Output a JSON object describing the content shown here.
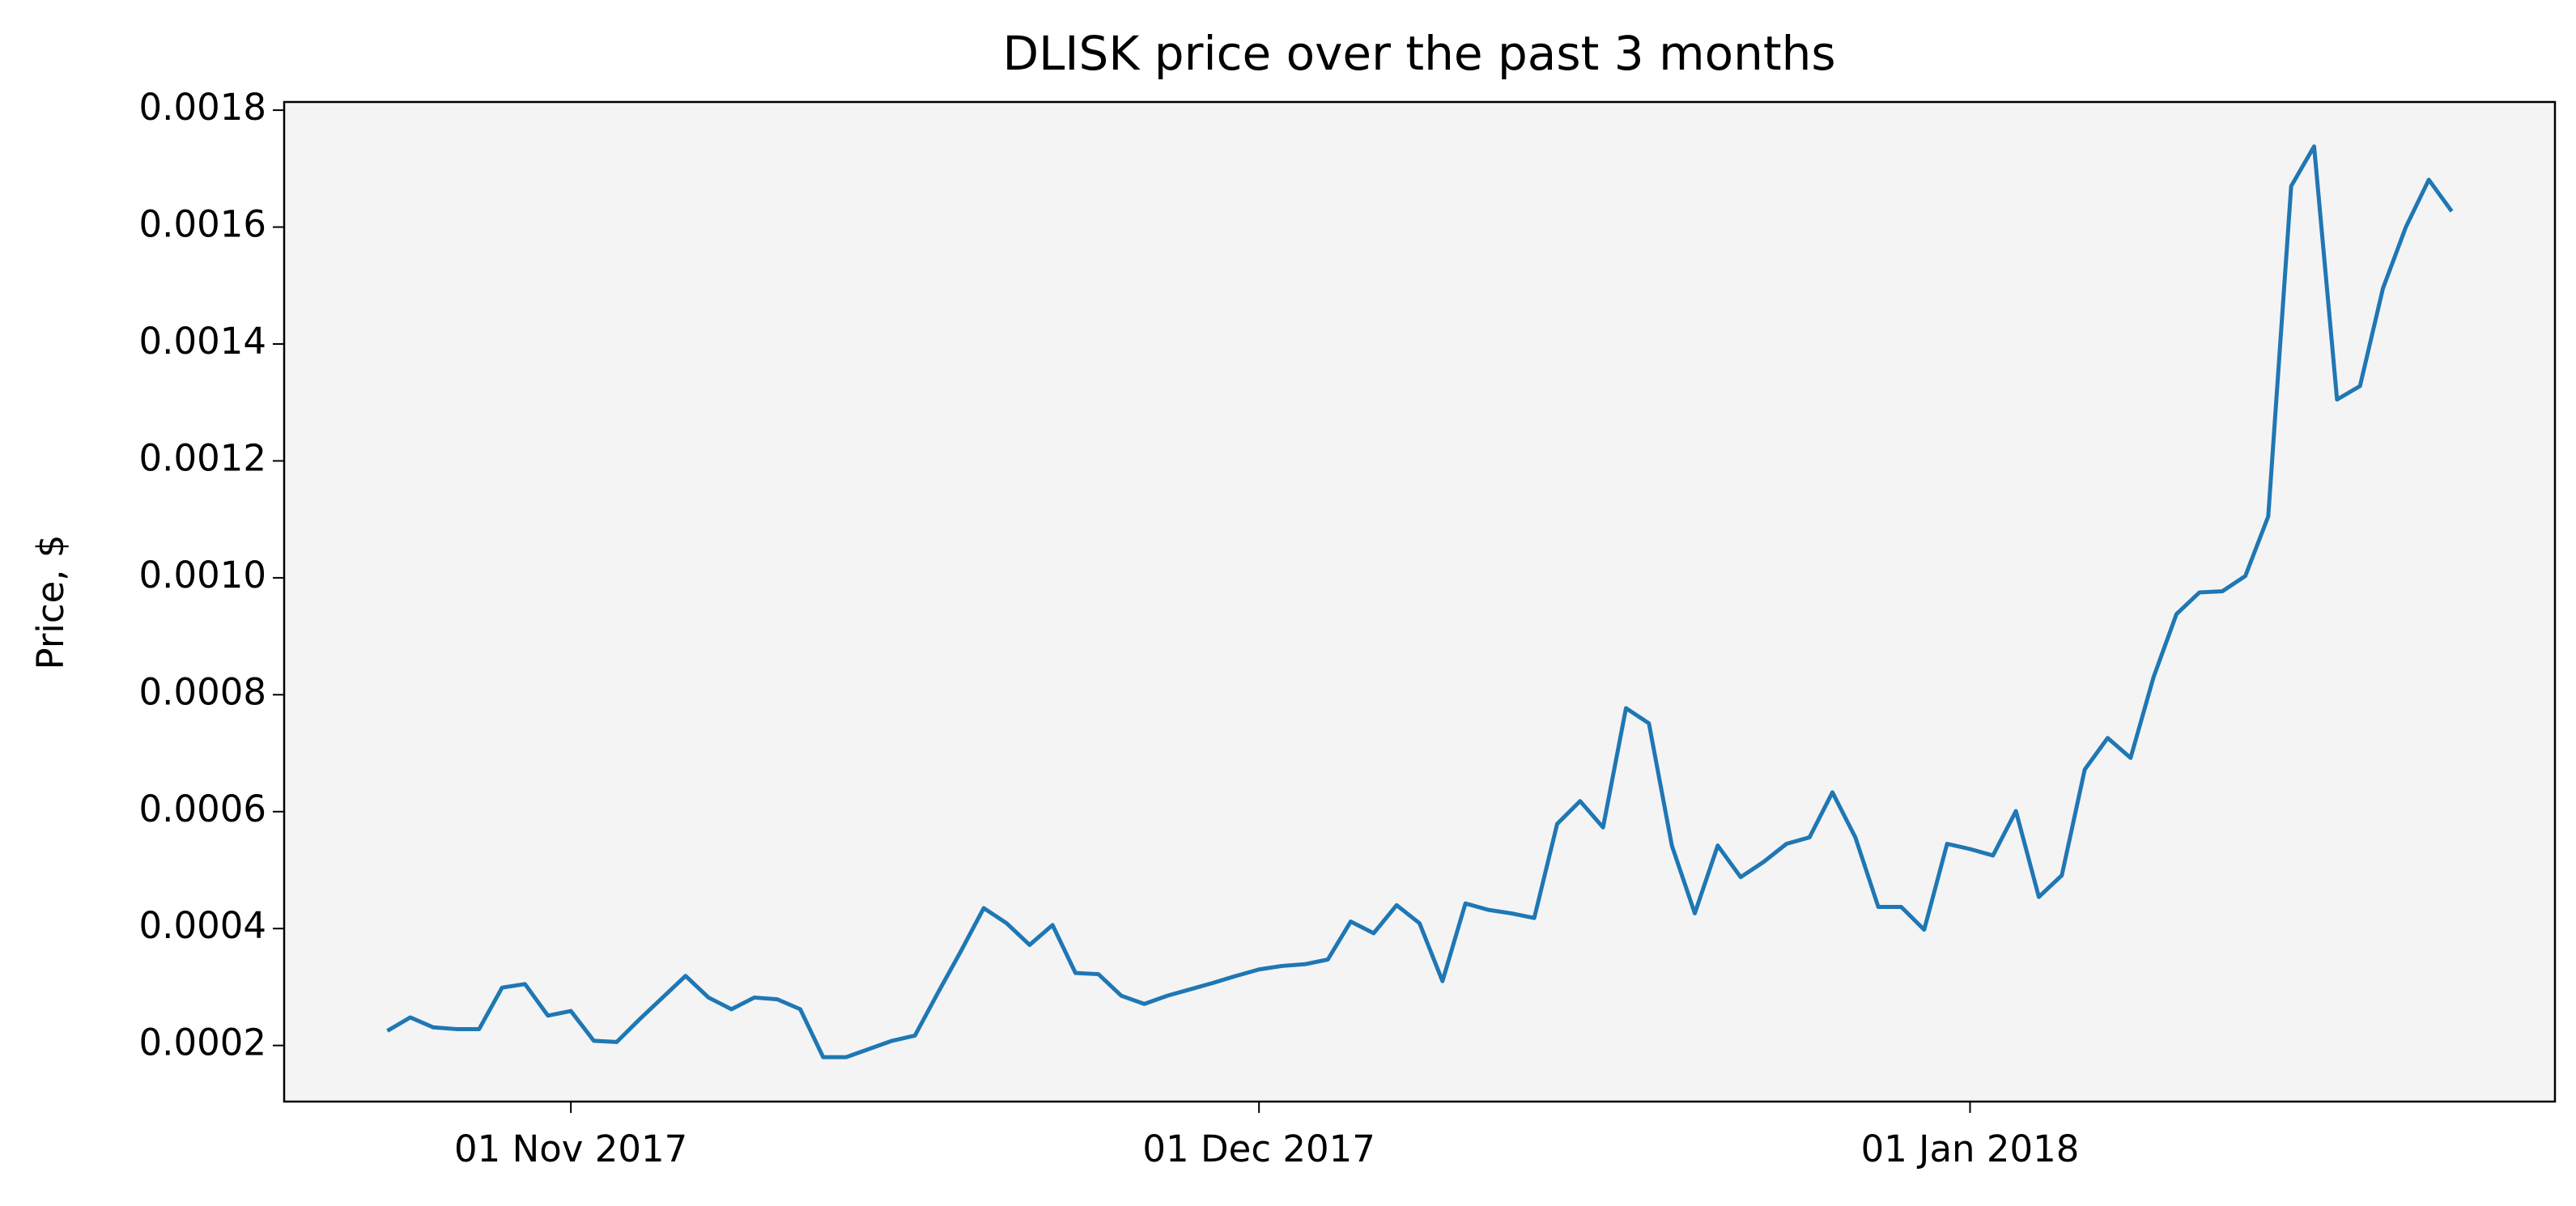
{
  "chart_data": {
    "type": "line",
    "title": "DLISK price over the past 3 months",
    "ylabel": "Price, $",
    "x": [
      "2017-10-24",
      "2017-10-25",
      "2017-10-26",
      "2017-10-27",
      "2017-10-28",
      "2017-10-29",
      "2017-10-30",
      "2017-10-31",
      "2017-11-01",
      "2017-11-02",
      "2017-11-03",
      "2017-11-04",
      "2017-11-05",
      "2017-11-06",
      "2017-11-07",
      "2017-11-08",
      "2017-11-09",
      "2017-11-10",
      "2017-11-11",
      "2017-11-12",
      "2017-11-13",
      "2017-11-14",
      "2017-11-15",
      "2017-11-16",
      "2017-11-17",
      "2017-11-18",
      "2017-11-19",
      "2017-11-20",
      "2017-11-21",
      "2017-11-22",
      "2017-11-23",
      "2017-11-24",
      "2017-11-25",
      "2017-11-26",
      "2017-11-27",
      "2017-11-28",
      "2017-11-29",
      "2017-11-30",
      "2017-12-01",
      "2017-12-02",
      "2017-12-03",
      "2017-12-04",
      "2017-12-05",
      "2017-12-06",
      "2017-12-07",
      "2017-12-08",
      "2017-12-09",
      "2017-12-10",
      "2017-12-11",
      "2017-12-12",
      "2017-12-13",
      "2017-12-14",
      "2017-12-15",
      "2017-12-16",
      "2017-12-17",
      "2017-12-18",
      "2017-12-19",
      "2017-12-20",
      "2017-12-21",
      "2017-12-22",
      "2017-12-23",
      "2017-12-24",
      "2017-12-25",
      "2017-12-26",
      "2017-12-27",
      "2017-12-28",
      "2017-12-29",
      "2017-12-30",
      "2017-12-31",
      "2018-01-01",
      "2018-01-02",
      "2018-01-03",
      "2018-01-04",
      "2018-01-05",
      "2018-01-06",
      "2018-01-07",
      "2018-01-08",
      "2018-01-09",
      "2018-01-10",
      "2018-01-11",
      "2018-01-12",
      "2018-01-13",
      "2018-01-14",
      "2018-01-15",
      "2018-01-16",
      "2018-01-17",
      "2018-01-18",
      "2018-01-19",
      "2018-01-20",
      "2018-01-21",
      "2018-01-22"
    ],
    "series": [
      {
        "name": "DLISK",
        "color": "#1f77b4",
        "values": [
          0.000225,
          0.000248,
          0.000231,
          0.000228,
          0.000228,
          0.000299,
          0.000305,
          0.000251,
          0.000259,
          0.000208,
          0.000206,
          0.000245,
          0.000282,
          0.000319,
          0.000282,
          0.000262,
          0.000282,
          0.000279,
          0.000262,
          0.00018,
          0.00018,
          0.000194,
          0.000208,
          0.000217,
          0.00029,
          0.000361,
          0.000435,
          0.000409,
          0.000372,
          0.000406,
          0.000324,
          0.000322,
          0.000285,
          0.000271,
          0.000285,
          0.000296,
          0.000307,
          0.000319,
          0.00033,
          0.000336,
          0.000339,
          0.000347,
          0.000412,
          0.000392,
          0.00044,
          0.000409,
          0.00031,
          0.000443,
          0.000432,
          0.000426,
          0.000418,
          0.000579,
          0.000618,
          0.000573,
          0.000777,
          0.000751,
          0.000542,
          0.000426,
          0.000542,
          0.000488,
          0.000514,
          0.000545,
          0.000556,
          0.000633,
          0.000556,
          0.000437,
          0.000437,
          0.000398,
          0.000545,
          0.000536,
          0.000525,
          0.000601,
          0.000454,
          0.000491,
          0.000672,
          0.000726,
          0.000692,
          0.00083,
          0.000938,
          0.000975,
          0.000977,
          0.001003,
          0.001105,
          0.00167,
          0.001738,
          0.001305,
          0.001328,
          0.001495,
          0.0016,
          0.001681,
          0.001627
        ]
      }
    ],
    "xlim": [
      "2017-10-19T12:00:00Z",
      "2018-01-26T12:00:00Z"
    ],
    "xticks": [
      {
        "value": "2017-11-01",
        "label": "01 Nov 2017"
      },
      {
        "value": "2017-12-01",
        "label": "01 Dec 2017"
      },
      {
        "value": "2018-01-01",
        "label": "01 Jan 2018"
      }
    ],
    "ylim": [
      0.000104,
      0.001814
    ],
    "yticks": [
      0.0002,
      0.0004,
      0.0006,
      0.0008,
      {
        "value": 0.001,
        "label": "0.0010"
      },
      0.0012,
      0.0014,
      0.0016,
      0.0018
    ],
    "background": "#f4f4f4"
  }
}
